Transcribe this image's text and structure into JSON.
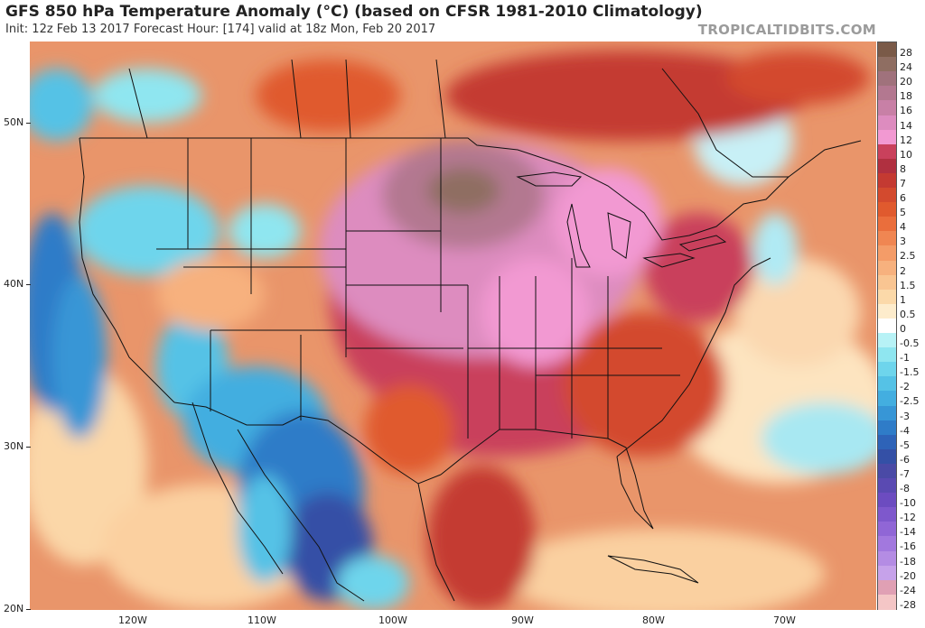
{
  "header": {
    "title": "GFS 850 hPa Temperature Anomaly (°C) (based on CFSR 1981-2010 Climatology)",
    "subtitle": "Init: 12z Feb 13 2017   Forecast Hour: [174]   valid at 18z Mon, Feb 20 2017",
    "brand": "TROPICALTIDBITS.COM"
  },
  "map": {
    "lat_labels": [
      "50N",
      "40N",
      "30N",
      "20N"
    ],
    "lon_labels": [
      "120W",
      "110W",
      "100W",
      "90W",
      "80W",
      "70W"
    ]
  },
  "colorbar": {
    "levels": [
      {
        "label": "28",
        "color": "#7a5a48"
      },
      {
        "label": "24",
        "color": "#8f6e62"
      },
      {
        "label": "20",
        "color": "#a0727c"
      },
      {
        "label": "18",
        "color": "#b37890"
      },
      {
        "label": "16",
        "color": "#c880a6"
      },
      {
        "label": "14",
        "color": "#dd8cbf"
      },
      {
        "label": "12",
        "color": "#f299d2"
      },
      {
        "label": "10",
        "color": "#c9415c"
      },
      {
        "label": "8",
        "color": "#b03040"
      },
      {
        "label": "7",
        "color": "#c43a32"
      },
      {
        "label": "6",
        "color": "#d34a2e"
      },
      {
        "label": "5",
        "color": "#e05a2e"
      },
      {
        "label": "4",
        "color": "#ea6e3c"
      },
      {
        "label": "3",
        "color": "#f08652"
      },
      {
        "label": "2.5",
        "color": "#f49c68"
      },
      {
        "label": "2",
        "color": "#f7b17e"
      },
      {
        "label": "1.5",
        "color": "#f9c592"
      },
      {
        "label": "1",
        "color": "#fbd9a9"
      },
      {
        "label": "0.5",
        "color": "#fdeccc"
      },
      {
        "label": "0",
        "color": "#ffffff"
      },
      {
        "label": "-0.5",
        "color": "#b7f2f6"
      },
      {
        "label": "-1",
        "color": "#8fe6f0"
      },
      {
        "label": "-1.5",
        "color": "#6ed5ec"
      },
      {
        "label": "-2",
        "color": "#55c2e6"
      },
      {
        "label": "-2.5",
        "color": "#43aee0"
      },
      {
        "label": "-3",
        "color": "#3796d6"
      },
      {
        "label": "-4",
        "color": "#2f7cc8"
      },
      {
        "label": "-5",
        "color": "#2e63b8"
      },
      {
        "label": "-6",
        "color": "#3450a6"
      },
      {
        "label": "-7",
        "color": "#4a4aa6"
      },
      {
        "label": "-8",
        "color": "#5a4ab2"
      },
      {
        "label": "-10",
        "color": "#6c4cc0"
      },
      {
        "label": "-12",
        "color": "#7e58cc"
      },
      {
        "label": "-14",
        "color": "#9066d6"
      },
      {
        "label": "-16",
        "color": "#a278de"
      },
      {
        "label": "-18",
        "color": "#b48ce4"
      },
      {
        "label": "-20",
        "color": "#c6a2ea"
      },
      {
        "label": "-24",
        "color": "#e0a0b4"
      },
      {
        "label": "-28",
        "color": "#f4c6c6"
      }
    ]
  }
}
